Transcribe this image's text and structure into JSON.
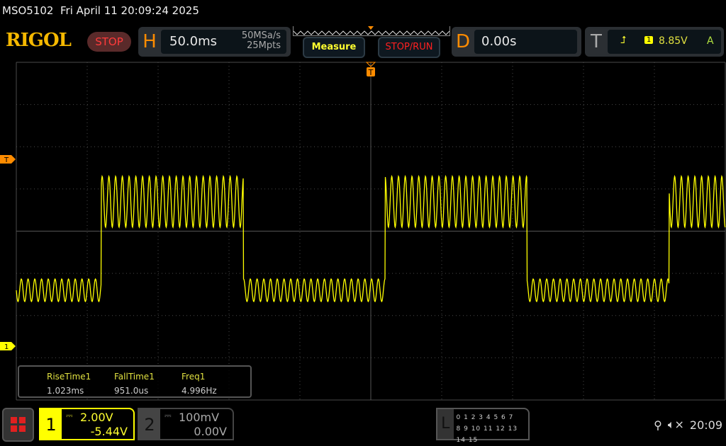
{
  "header": {
    "model": "MSO5102",
    "datetime": "Fri April 11 20:09:24 2025",
    "logo": "RIGOL",
    "run_state": "STOP"
  },
  "horizontal": {
    "letter": "H",
    "timebase": "50.0ms",
    "sample_rate": "50MSa/s",
    "memory_depth": "25Mpts"
  },
  "buttons": {
    "measure": "Measure",
    "stop_run": "STOP/RUN"
  },
  "delay": {
    "letter": "D",
    "value": "0.00s"
  },
  "trigger": {
    "letter": "T",
    "source": "1",
    "level": "8.85V",
    "mode": "A",
    "edge_icon": "rising-edge-icon",
    "marker_label": "T"
  },
  "colors": {
    "ch1": "#ffff00",
    "trigger": "#ff8c00",
    "grid": "#4a4a4a"
  },
  "waveform": {
    "channel": "1",
    "shape": "square wave with sinusoidal ripple",
    "frequency_hz": 4.996,
    "ch1_marker": "1"
  },
  "measurements": [
    {
      "name": "RiseTime1",
      "value": "1.023ms"
    },
    {
      "name": "FallTime1",
      "value": "951.0us"
    },
    {
      "name": "Freq1",
      "value": "4.996Hz"
    }
  ],
  "channels": [
    {
      "label": "1",
      "coupling": "DC",
      "scale": "2.00V",
      "offset": "-5.44V",
      "active": true
    },
    {
      "label": "2",
      "coupling": "DC",
      "scale": "100mV",
      "offset": "0.00V",
      "active": false
    }
  ],
  "logic": {
    "label": "L",
    "row1": "0 1 2 3  4 5 6 7",
    "row2": "8 9 10 11 12 13 14 15"
  },
  "status": {
    "usb_icon": "usb-icon",
    "sound_icon": "mute-icon",
    "time": "20:09"
  }
}
